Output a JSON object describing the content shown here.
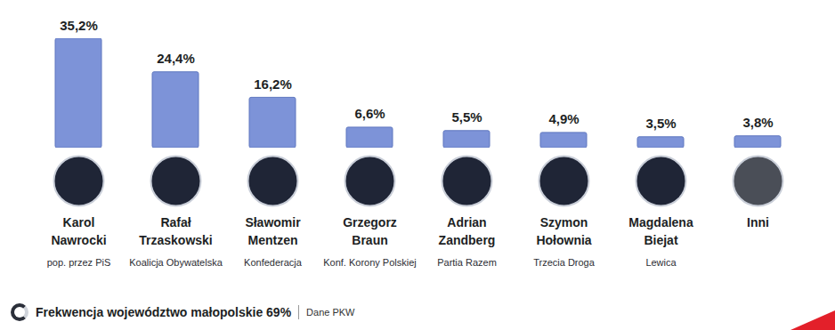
{
  "chart_data": {
    "type": "bar",
    "categories": [
      "Karol Nawrocki",
      "Rafał Trzaskowski",
      "Sławomir Mentzen",
      "Grzegorz Braun",
      "Adrian Zandberg",
      "Szymon Hołownia",
      "Magdalena Biejat",
      "Inni"
    ],
    "parties": [
      "pop. przez PiS",
      "Koalicja Obywatelska",
      "Konfederacja",
      "Konf. Korony Polskiej",
      "Partia Razem",
      "Trzecia Droga",
      "Lewica",
      null
    ],
    "values": [
      35.2,
      24.4,
      16.2,
      6.6,
      5.5,
      4.9,
      3.5,
      3.8
    ],
    "value_labels": [
      "35,2%",
      "24,4%",
      "16,2%",
      "6,6%",
      "5,5%",
      "4,9%",
      "3,5%",
      "3,8%"
    ],
    "color": "#7d93d8",
    "ylim": [
      0,
      35.2
    ],
    "tick_labels": false,
    "grid": false,
    "data_labels": true,
    "caption": "Frekwencja województwo małopolskie 69%",
    "source": "Dane PKW"
  }
}
